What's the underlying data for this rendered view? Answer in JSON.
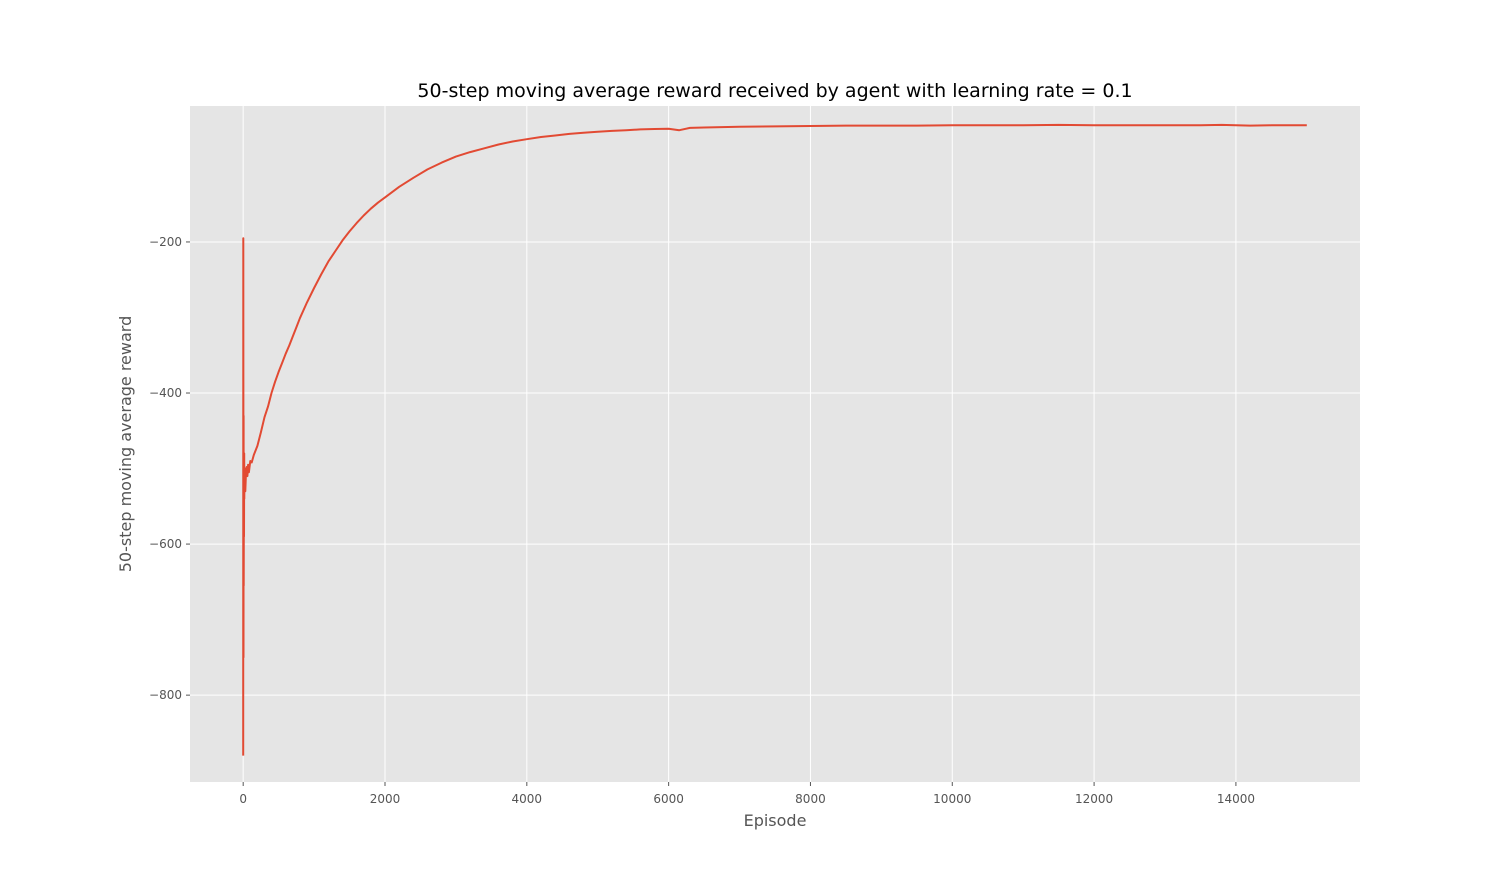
{
  "chart_data": {
    "type": "line",
    "title": "50-step moving average reward received by agent with learning rate = 0.1",
    "xlabel": "Episode",
    "ylabel": "50-step moving average reward",
    "xlim": [
      -750,
      15750
    ],
    "ylim": [
      -915,
      -20
    ],
    "xticks": [
      0,
      2000,
      4000,
      6000,
      8000,
      10000,
      12000,
      14000
    ],
    "xtick_labels": [
      "0",
      "2000",
      "4000",
      "6000",
      "8000",
      "10000",
      "12000",
      "14000"
    ],
    "yticks": [
      -200,
      -400,
      -600,
      -800
    ],
    "ytick_labels": [
      "−200",
      "−400",
      "−600",
      "−800"
    ],
    "grid": true,
    "background": "#e5e5e5",
    "grid_color": "#ffffff",
    "series": [
      {
        "color": "#e24a33",
        "x": [
          0,
          2,
          4,
          6,
          8,
          10,
          12,
          14,
          16,
          18,
          20,
          25,
          30,
          40,
          50,
          60,
          70,
          80,
          100,
          120,
          150,
          200,
          250,
          300,
          350,
          400,
          450,
          500,
          550,
          600,
          650,
          700,
          750,
          800,
          900,
          1000,
          1100,
          1200,
          1300,
          1400,
          1500,
          1600,
          1700,
          1800,
          1900,
          2000,
          2200,
          2400,
          2600,
          2800,
          3000,
          3200,
          3400,
          3600,
          3800,
          4000,
          4200,
          4400,
          4600,
          4800,
          5000,
          5200,
          5400,
          5600,
          5800,
          6000,
          6150,
          6300,
          6500,
          7000,
          7500,
          8000,
          8500,
          9000,
          9500,
          10000,
          10500,
          11000,
          11500,
          12000,
          12500,
          13000,
          13500,
          13800,
          14000,
          14200,
          14500,
          15000
        ],
        "y": [
          -880,
          -195,
          -750,
          -430,
          -655,
          -500,
          -590,
          -480,
          -540,
          -500,
          -515,
          -500,
          -530,
          -505,
          -498,
          -510,
          -495,
          -505,
          -490,
          -492,
          -482,
          -470,
          -452,
          -432,
          -418,
          -400,
          -385,
          -372,
          -360,
          -348,
          -337,
          -325,
          -313,
          -301,
          -280,
          -261,
          -243,
          -226,
          -212,
          -198,
          -186,
          -175,
          -165,
          -156,
          -148,
          -141,
          -127,
          -115,
          -104,
          -95,
          -87,
          -81,
          -76,
          -71,
          -67,
          -64,
          -61,
          -59,
          -57,
          -55.5,
          -54,
          -53,
          -52,
          -51,
          -50.5,
          -50,
          -52,
          -49,
          -48.5,
          -47.5,
          -47,
          -46.5,
          -46,
          -46,
          -46,
          -45.5,
          -45.5,
          -45.5,
          -45,
          -45.5,
          -45.5,
          -45.5,
          -45.5,
          -45,
          -45.5,
          -46,
          -45.5,
          -45.5
        ]
      }
    ]
  }
}
